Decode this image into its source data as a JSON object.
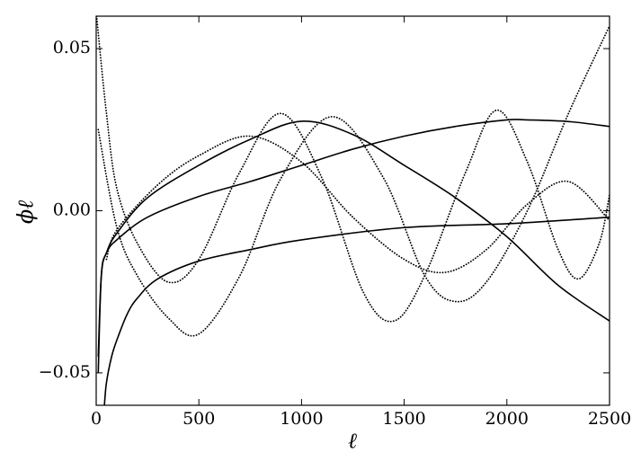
{
  "chart_data": {
    "type": "line",
    "x_label": "ℓ",
    "y_label": "ϕℓ",
    "xlim": [
      0,
      2500
    ],
    "ylim": [
      -0.06,
      0.06
    ],
    "xticks": [
      0,
      500,
      1000,
      1500,
      2000,
      2500
    ],
    "yticks": [
      {
        "value": -0.05,
        "label": "−0.05"
      },
      {
        "value": 0,
        "label": "0.00"
      },
      {
        "value": 0.05,
        "label": "0.05"
      }
    ],
    "series": [
      {
        "color": "#000000",
        "style": "solid",
        "x": [
          10,
          25,
          50,
          100,
          250,
          500,
          750,
          1000,
          1250,
          1500,
          1750,
          2000,
          2250,
          2500
        ],
        "values": [
          -0.05,
          -0.02,
          -0.013,
          -0.007,
          0.004,
          0.014,
          0.022,
          0.0276,
          0.0235,
          0.014,
          0.004,
          -0.008,
          -0.023,
          -0.034
        ]
      },
      {
        "color": "#000000",
        "style": "solid",
        "x": [
          10,
          25,
          50,
          100,
          250,
          500,
          750,
          1000,
          1250,
          1500,
          1750,
          2000,
          2100,
          2300,
          2500
        ],
        "values": [
          -0.045,
          -0.02,
          -0.013,
          -0.009,
          -0.002,
          0.0044,
          0.009,
          0.014,
          0.019,
          0.023,
          0.026,
          0.028,
          0.028,
          0.0275,
          0.026
        ]
      },
      {
        "color": "#000000",
        "style": "solid",
        "x": [
          40,
          50,
          75,
          100,
          150,
          200,
          300,
          500,
          750,
          1000,
          1500,
          2000,
          2500
        ],
        "values": [
          -0.06,
          -0.053,
          -0.045,
          -0.04,
          -0.032,
          -0.027,
          -0.021,
          -0.0155,
          -0.012,
          -0.009,
          -0.0052,
          -0.004,
          -0.002
        ]
      },
      {
        "color": "#000000",
        "style": "dotted",
        "x": [
          2,
          50,
          100,
          200,
          350,
          500,
          700,
          900,
          1100,
          1300,
          1450,
          1600,
          1800,
          1950,
          2100,
          2250,
          2350,
          2450,
          2500
        ],
        "values": [
          0.06,
          0.03,
          0.007,
          -0.01,
          -0.022,
          -0.015,
          0.012,
          0.03,
          0.01,
          -0.025,
          -0.034,
          -0.02,
          0.012,
          0.031,
          0.015,
          -0.012,
          -0.021,
          -0.01,
          0.005
        ]
      },
      {
        "color": "#000000",
        "style": "dotted",
        "x": [
          10,
          100,
          200,
          350,
          500,
          700,
          900,
          1150,
          1400,
          1600,
          1750,
          1900,
          2100,
          2300,
          2500
        ],
        "values": [
          0.025,
          -0.005,
          -0.02,
          -0.033,
          -0.038,
          -0.02,
          0.01,
          0.029,
          0.01,
          -0.02,
          -0.028,
          -0.022,
          0.0,
          0.03,
          0.057
        ]
      },
      {
        "color": "#000000",
        "style": "dotted",
        "x": [
          50,
          100,
          300,
          500,
          750,
          1000,
          1250,
          1500,
          1700,
          1900,
          2100,
          2300,
          2500
        ],
        "values": [
          -0.015,
          -0.006,
          0.008,
          0.017,
          0.023,
          0.015,
          -0.002,
          -0.015,
          -0.019,
          -0.012,
          0.002,
          0.009,
          -0.003
        ]
      }
    ]
  }
}
